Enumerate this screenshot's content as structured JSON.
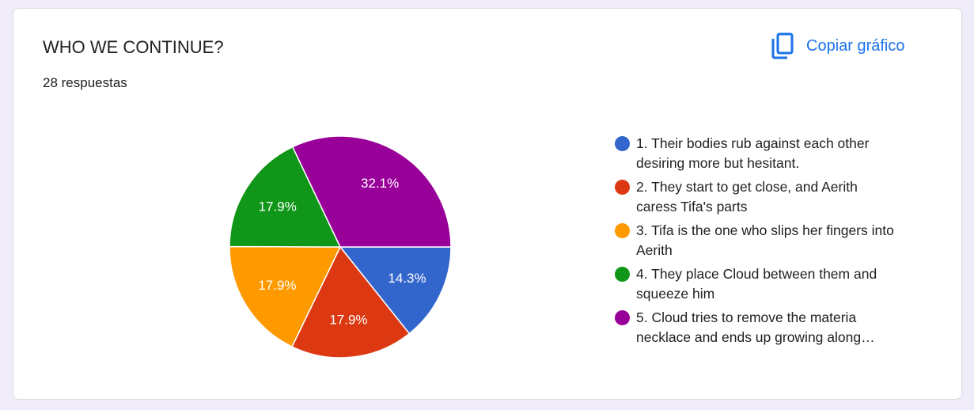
{
  "header": {
    "title": "WHO WE CONTINUE?",
    "subtitle": "28 respuestas",
    "copy_button": "Copiar gráfico"
  },
  "chart_data": {
    "type": "pie",
    "categories": [
      "1. Their bodies rub against each other desiring more but hesitant.",
      "2. They start to get close, and Aerith caress Tifa's parts",
      "3. Tifa is the one who slips her fingers into Aerith",
      "4. They place Cloud between them and squeeze him",
      "5. Cloud tries to remove the materia necklace and ends up growing along…"
    ],
    "values": [
      14.3,
      17.9,
      17.9,
      17.9,
      32.1
    ],
    "value_labels": [
      "14.3%",
      "17.9%",
      "17.9%",
      "17.9%",
      "32.1%"
    ],
    "colors": [
      "#3366cc",
      "#dc3912",
      "#ff9900",
      "#109618",
      "#990099"
    ],
    "legend": "right"
  }
}
